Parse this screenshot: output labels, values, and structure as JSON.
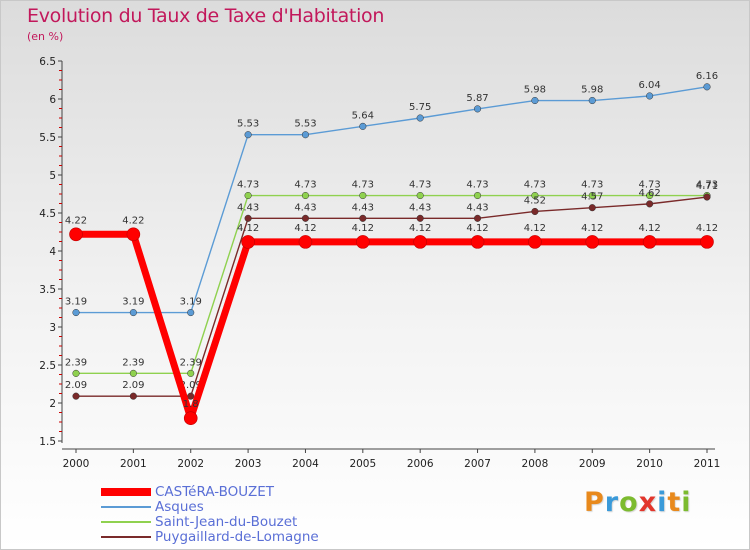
{
  "header": {
    "title": "Evolution du Taux de Taxe d'Habitation",
    "subtitle": "(en %)"
  },
  "brand": {
    "letters": [
      "P",
      "r",
      "o",
      "x",
      "i",
      "t",
      "i"
    ],
    "colors": [
      "#e8891c",
      "#3a9ad9",
      "#7cbb2f",
      "#e2362c",
      "#3a9ad9",
      "#e8891c",
      "#7cbb2f"
    ]
  },
  "chart_data": {
    "type": "line",
    "x": [
      "2000",
      "2001",
      "2002",
      "2003",
      "2004",
      "2005",
      "2006",
      "2007",
      "2008",
      "2009",
      "2010",
      "2011"
    ],
    "ylim": [
      1.5,
      6.5
    ],
    "yticks": [
      "1.5",
      "2",
      "2.5",
      "3",
      "3.5",
      "4",
      "4.5",
      "5",
      "5.5",
      "6",
      "6.5"
    ],
    "grid": false,
    "legend_position": "bottom",
    "series": [
      {
        "name": "CASTéRA-BOUZET",
        "color": "#ff0000",
        "values": [
          4.22,
          4.22,
          1.8,
          4.12,
          4.12,
          4.12,
          4.12,
          4.12,
          4.12,
          4.12,
          4.12,
          4.12
        ],
        "labels": [
          "4.22",
          "4.22",
          "1.8",
          "4.12",
          "4.12",
          "4.12",
          "4.12",
          "4.12",
          "4.12",
          "4.12",
          "4.12",
          "4.12"
        ]
      },
      {
        "name": "Asques",
        "color": "#5b9bd5",
        "values": [
          3.19,
          3.19,
          3.19,
          5.53,
          5.53,
          5.64,
          5.75,
          5.87,
          5.98,
          5.98,
          6.04,
          6.16
        ],
        "labels": [
          "3.19",
          "3.19",
          "3.19",
          "5.53",
          "5.53",
          "5.64",
          "5.75",
          "5.87",
          "5.98",
          "5.98",
          "6.04",
          "6.16"
        ]
      },
      {
        "name": "Saint-Jean-du-Bouzet",
        "color": "#8fd14f",
        "values": [
          2.39,
          2.39,
          2.39,
          4.73,
          4.73,
          4.73,
          4.73,
          4.73,
          4.73,
          4.73,
          4.73,
          4.73
        ],
        "labels": [
          "2.39",
          "2.39",
          "2.39",
          "4.73",
          "4.73",
          "4.73",
          "4.73",
          "4.73",
          "4.73",
          "4.73",
          "4.73",
          "4.73"
        ]
      },
      {
        "name": "Puygaillard-de-Lomagne",
        "color": "#7a2a2a",
        "values": [
          2.09,
          2.09,
          2.09,
          4.43,
          4.43,
          4.43,
          4.43,
          4.43,
          4.52,
          4.57,
          4.62,
          4.71
        ],
        "labels": [
          "2.09",
          "2.09",
          "2.09",
          "4.43",
          "4.43",
          "4.43",
          "4.43",
          "4.43",
          "4.52",
          "4.57",
          "4.62",
          "4.71"
        ]
      }
    ]
  }
}
